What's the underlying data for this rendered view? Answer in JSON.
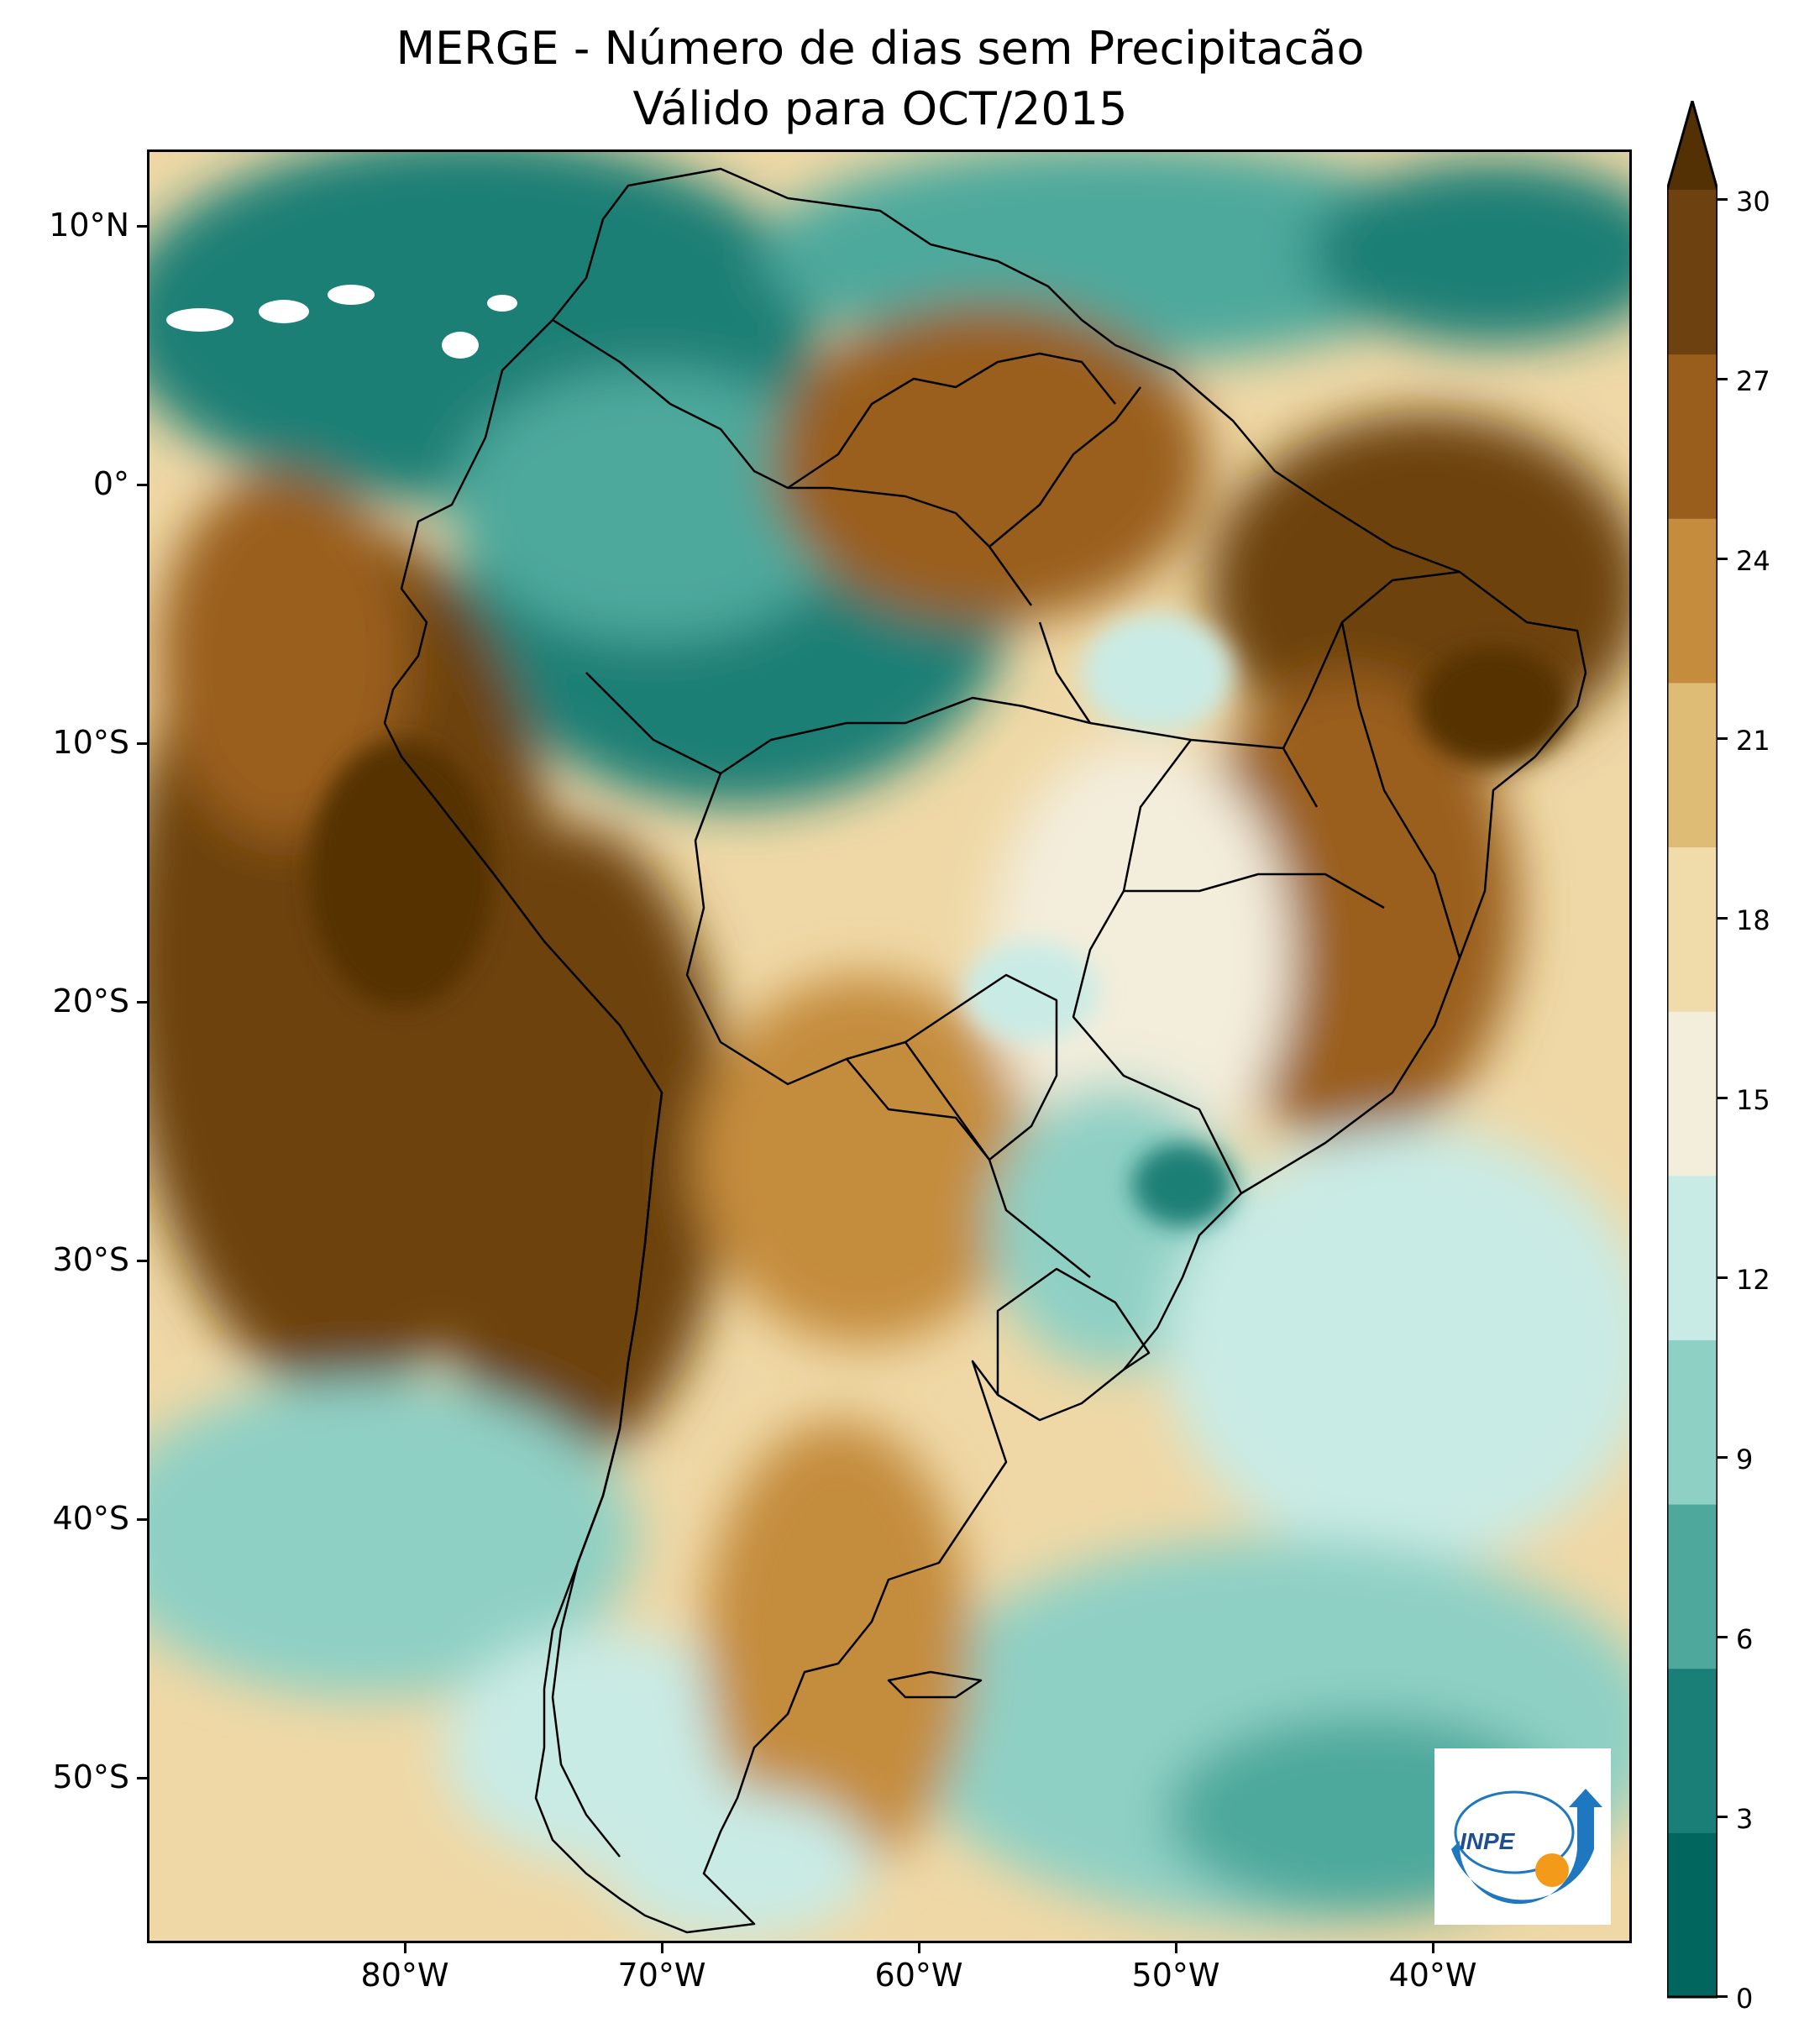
{
  "title": {
    "line1": "MERGE - Número de dias sem Precipitacão",
    "line2": "Válido para OCT/2015"
  },
  "map": {
    "region": "South America",
    "variable": "Número de dias sem Precipitacão",
    "latitude_labels": [
      "10°N",
      "0°",
      "10°S",
      "20°S",
      "30°S",
      "40°S",
      "50°S"
    ],
    "longitude_labels": [
      "80°W",
      "70°W",
      "60°W",
      "50°W",
      "40°W"
    ],
    "lat_range": [
      -56,
      13
    ],
    "lon_range": [
      -90,
      -32
    ]
  },
  "colorbar": {
    "tick_labels": [
      "0",
      "3",
      "6",
      "9",
      "12",
      "15",
      "18",
      "21",
      "24",
      "27",
      "30"
    ],
    "extend": "max",
    "colors": [
      "#01665e",
      "#1a7f76",
      "#4ea99c",
      "#8fd0c4",
      "#c9ebe5",
      "#f3eddb",
      "#f0dcaa",
      "#dfbc76",
      "#c48c3c",
      "#9a5e1c",
      "#6d4210",
      "#543005"
    ]
  },
  "logo": {
    "text": "INPE",
    "colors": {
      "arc": "#1f78bf",
      "dot": "#f39a1b"
    }
  }
}
